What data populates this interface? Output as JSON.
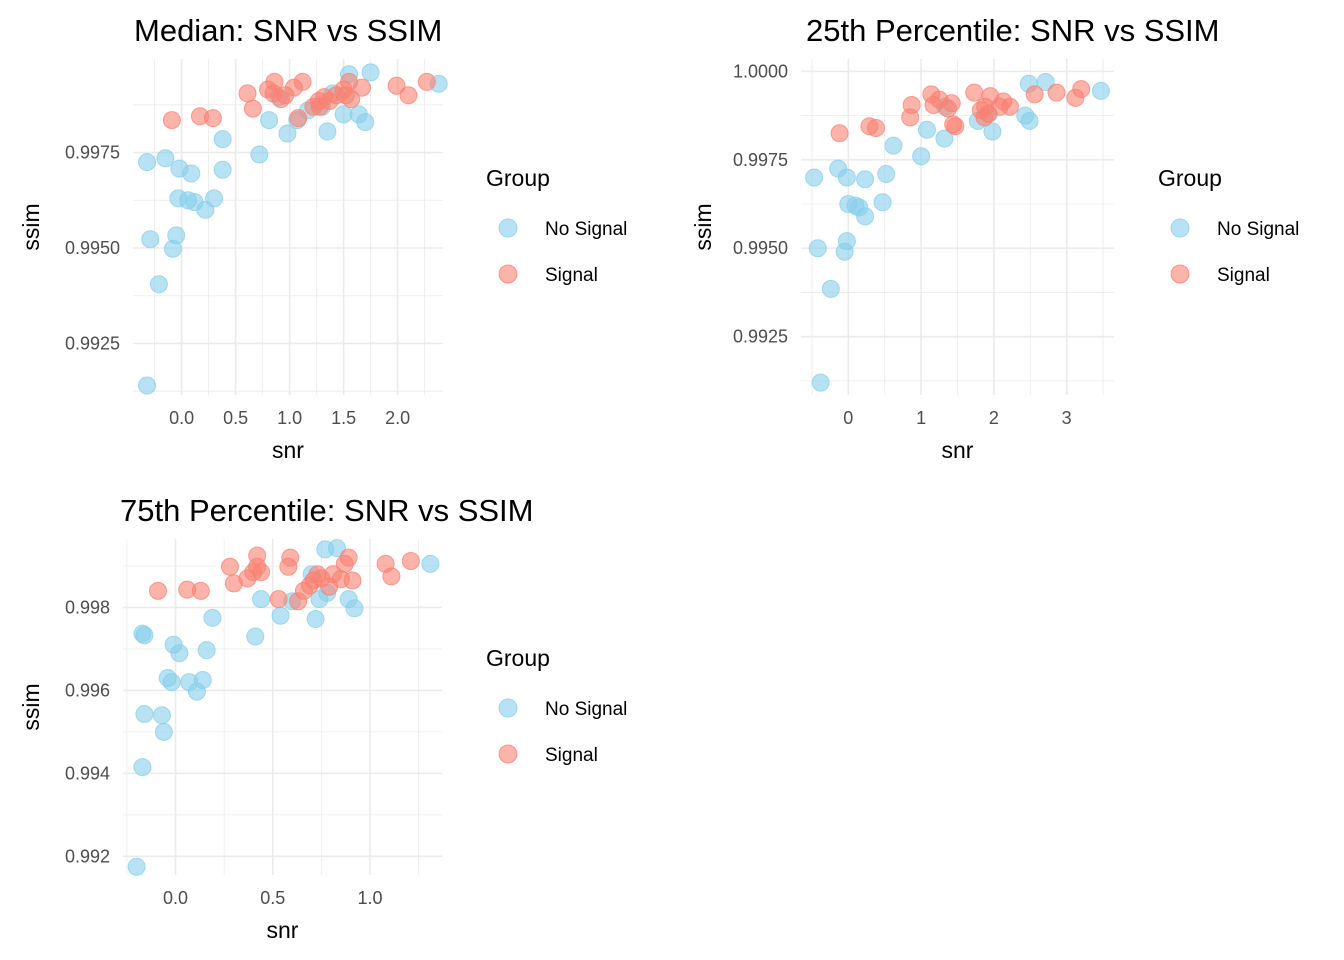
{
  "colors": {
    "no_signal": "#87CEEB",
    "signal": "#FA8072",
    "grid": "#EBEBEB",
    "text": "#000000",
    "tick": "#4D4D4D"
  },
  "legend_title": "Group",
  "chart_data": [
    {
      "type": "scatter",
      "title": "Median: SNR vs SSIM",
      "xlabel": "snr",
      "ylabel": "ssim",
      "xlim": [
        -0.45,
        2.42
      ],
      "ylim": [
        0.99115,
        0.99995
      ],
      "x_ticks": [
        0.0,
        0.5,
        1.0,
        1.5,
        2.0
      ],
      "x_tick_labels": [
        "0.0",
        "0.5",
        "1.0",
        "1.5",
        "2.0"
      ],
      "y_ticks": [
        0.9925,
        0.995,
        0.9975
      ],
      "y_tick_labels": [
        "0.9925",
        "0.9950",
        "0.9975"
      ],
      "grid": true,
      "legend": {
        "title": "Group",
        "position": "right",
        "entries": [
          "No Signal",
          "Signal"
        ]
      },
      "series": [
        {
          "name": "No Signal",
          "points": [
            [
              -0.32,
              0.9914
            ],
            [
              -0.32,
              0.99725
            ],
            [
              -0.29,
              0.99523
            ],
            [
              -0.21,
              0.99405
            ],
            [
              -0.15,
              0.99735
            ],
            [
              -0.08,
              0.99498
            ],
            [
              -0.05,
              0.99533
            ],
            [
              -0.03,
              0.9963
            ],
            [
              -0.02,
              0.99708
            ],
            [
              0.06,
              0.99625
            ],
            [
              0.09,
              0.99695
            ],
            [
              0.12,
              0.9962
            ],
            [
              0.22,
              0.996
            ],
            [
              0.3,
              0.9963
            ],
            [
              0.38,
              0.99705
            ],
            [
              0.38,
              0.99785
            ],
            [
              0.72,
              0.99745
            ],
            [
              0.81,
              0.99835
            ],
            [
              0.9,
              0.99895
            ],
            [
              0.98,
              0.998
            ],
            [
              1.07,
              0.99835
            ],
            [
              1.17,
              0.9986
            ],
            [
              1.3,
              0.9987
            ],
            [
              1.35,
              0.99805
            ],
            [
              1.4,
              0.99905
            ],
            [
              1.5,
              0.9985
            ],
            [
              1.55,
              0.99955
            ],
            [
              1.64,
              0.9985
            ],
            [
              1.7,
              0.9983
            ],
            [
              1.75,
              0.9996
            ],
            [
              2.38,
              0.9993
            ]
          ]
        },
        {
          "name": "Signal",
          "points": [
            [
              -0.09,
              0.99835
            ],
            [
              0.17,
              0.99845
            ],
            [
              0.29,
              0.9984
            ],
            [
              0.61,
              0.99905
            ],
            [
              0.66,
              0.99865
            ],
            [
              0.8,
              0.99915
            ],
            [
              0.85,
              0.99905
            ],
            [
              0.86,
              0.99935
            ],
            [
              0.92,
              0.9989
            ],
            [
              0.96,
              0.999
            ],
            [
              1.04,
              0.9992
            ],
            [
              1.08,
              0.9984
            ],
            [
              1.12,
              0.99935
            ],
            [
              1.22,
              0.9987
            ],
            [
              1.27,
              0.99885
            ],
            [
              1.28,
              0.9987
            ],
            [
              1.32,
              0.99895
            ],
            [
              1.37,
              0.99885
            ],
            [
              1.43,
              0.999
            ],
            [
              1.5,
              0.99915
            ],
            [
              1.52,
              0.999
            ],
            [
              1.55,
              0.99935
            ],
            [
              1.57,
              0.9989
            ],
            [
              1.67,
              0.9992
            ],
            [
              1.99,
              0.99925
            ],
            [
              2.1,
              0.999
            ],
            [
              2.27,
              0.99935
            ]
          ]
        }
      ]
    },
    {
      "type": "scatter",
      "title": "25th Percentile: SNR vs SSIM",
      "xlabel": "snr",
      "ylabel": "ssim",
      "xlim": [
        -0.65,
        3.65
      ],
      "ylim": [
        0.99085,
        1.00035
      ],
      "x_ticks": [
        0,
        1,
        2,
        3
      ],
      "x_tick_labels": [
        "0",
        "1",
        "2",
        "3"
      ],
      "y_ticks": [
        0.9925,
        0.995,
        0.9975,
        1.0
      ],
      "y_tick_labels": [
        "0.9925",
        "0.9950",
        "0.9975",
        "1.0000"
      ],
      "grid": true,
      "legend": {
        "title": "Group",
        "position": "right",
        "entries": [
          "No Signal",
          "Signal"
        ]
      },
      "series": [
        {
          "name": "No Signal",
          "points": [
            [
              -0.47,
              0.997
            ],
            [
              -0.42,
              0.995
            ],
            [
              -0.38,
              0.9912
            ],
            [
              -0.24,
              0.99385
            ],
            [
              -0.14,
              0.99725
            ],
            [
              -0.05,
              0.9949
            ],
            [
              -0.02,
              0.9952
            ],
            [
              -0.02,
              0.997
            ],
            [
              0.0,
              0.99625
            ],
            [
              0.1,
              0.9962
            ],
            [
              0.15,
              0.99615
            ],
            [
              0.23,
              0.9959
            ],
            [
              0.23,
              0.99695
            ],
            [
              0.47,
              0.9963
            ],
            [
              0.52,
              0.9971
            ],
            [
              0.62,
              0.9979
            ],
            [
              1.0,
              0.9976
            ],
            [
              1.08,
              0.99835
            ],
            [
              1.32,
              0.9981
            ],
            [
              1.33,
              0.999
            ],
            [
              1.78,
              0.9986
            ],
            [
              1.93,
              0.9988
            ],
            [
              1.98,
              0.9983
            ],
            [
              2.43,
              0.99875
            ],
            [
              2.48,
              0.99965
            ],
            [
              2.49,
              0.9986
            ],
            [
              2.71,
              0.9997
            ],
            [
              3.47,
              0.99945
            ]
          ]
        },
        {
          "name": "Signal",
          "points": [
            [
              -0.12,
              0.99825
            ],
            [
              0.29,
              0.99845
            ],
            [
              0.38,
              0.9984
            ],
            [
              0.85,
              0.9987
            ],
            [
              0.87,
              0.99905
            ],
            [
              1.14,
              0.99935
            ],
            [
              1.17,
              0.99905
            ],
            [
              1.25,
              0.9992
            ],
            [
              1.37,
              0.99895
            ],
            [
              1.42,
              0.9991
            ],
            [
              1.44,
              0.9985
            ],
            [
              1.47,
              0.99845
            ],
            [
              1.73,
              0.9994
            ],
            [
              1.82,
              0.9989
            ],
            [
              1.87,
              0.9987
            ],
            [
              1.88,
              0.999
            ],
            [
              1.92,
              0.9988
            ],
            [
              1.95,
              0.9993
            ],
            [
              2.08,
              0.999
            ],
            [
              2.13,
              0.99915
            ],
            [
              2.22,
              0.999
            ],
            [
              2.56,
              0.99935
            ],
            [
              2.86,
              0.9994
            ],
            [
              3.12,
              0.99925
            ],
            [
              3.2,
              0.9995
            ]
          ]
        }
      ]
    },
    {
      "type": "scatter",
      "title": "75th Percentile: SNR vs SSIM",
      "xlabel": "snr",
      "ylabel": "ssim",
      "xlim": [
        -0.27,
        1.37
      ],
      "ylim": [
        0.99155,
        0.99965
      ],
      "x_ticks": [
        0.0,
        0.5,
        1.0
      ],
      "x_tick_labels": [
        "0.0",
        "0.5",
        "1.0"
      ],
      "y_ticks": [
        0.992,
        0.994,
        0.996,
        0.998
      ],
      "y_tick_labels": [
        "0.992",
        "0.994",
        "0.996",
        "0.998"
      ],
      "grid": true,
      "legend": {
        "title": "Group",
        "position": "right",
        "entries": [
          "No Signal",
          "Signal"
        ]
      },
      "series": [
        {
          "name": "No Signal",
          "points": [
            [
              -0.2,
              0.99175
            ],
            [
              -0.17,
              0.99737
            ],
            [
              -0.17,
              0.99415
            ],
            [
              -0.16,
              0.99733
            ],
            [
              -0.16,
              0.99543
            ],
            [
              -0.07,
              0.9954
            ],
            [
              -0.06,
              0.995
            ],
            [
              -0.04,
              0.9963
            ],
            [
              -0.02,
              0.9962
            ],
            [
              -0.01,
              0.9971
            ],
            [
              0.02,
              0.9969
            ],
            [
              0.07,
              0.9962
            ],
            [
              0.11,
              0.99597
            ],
            [
              0.14,
              0.99625
            ],
            [
              0.16,
              0.99697
            ],
            [
              0.19,
              0.99775
            ],
            [
              0.41,
              0.9973
            ],
            [
              0.44,
              0.9982
            ],
            [
              0.54,
              0.9978
            ],
            [
              0.6,
              0.99815
            ],
            [
              0.7,
              0.9988
            ],
            [
              0.72,
              0.99772
            ],
            [
              0.74,
              0.9982
            ],
            [
              0.77,
              0.9994
            ],
            [
              0.78,
              0.99835
            ],
            [
              0.83,
              0.99943
            ],
            [
              0.89,
              0.9982
            ],
            [
              0.92,
              0.99798
            ],
            [
              1.31,
              0.99905
            ]
          ]
        },
        {
          "name": "Signal",
          "points": [
            [
              -0.09,
              0.9984
            ],
            [
              0.06,
              0.99843
            ],
            [
              0.13,
              0.9984
            ],
            [
              0.28,
              0.99898
            ],
            [
              0.3,
              0.99858
            ],
            [
              0.37,
              0.9987
            ],
            [
              0.4,
              0.99885
            ],
            [
              0.42,
              0.99898
            ],
            [
              0.42,
              0.99925
            ],
            [
              0.44,
              0.99885
            ],
            [
              0.53,
              0.9982
            ],
            [
              0.58,
              0.99898
            ],
            [
              0.59,
              0.9992
            ],
            [
              0.63,
              0.99815
            ],
            [
              0.66,
              0.9984
            ],
            [
              0.69,
              0.99853
            ],
            [
              0.71,
              0.99865
            ],
            [
              0.73,
              0.9988
            ],
            [
              0.75,
              0.9987
            ],
            [
              0.79,
              0.9985
            ],
            [
              0.81,
              0.9988
            ],
            [
              0.85,
              0.99868
            ],
            [
              0.87,
              0.99905
            ],
            [
              0.89,
              0.9992
            ],
            [
              0.91,
              0.99865
            ],
            [
              1.08,
              0.99905
            ],
            [
              1.11,
              0.99875
            ],
            [
              1.21,
              0.99912
            ]
          ]
        }
      ]
    }
  ]
}
